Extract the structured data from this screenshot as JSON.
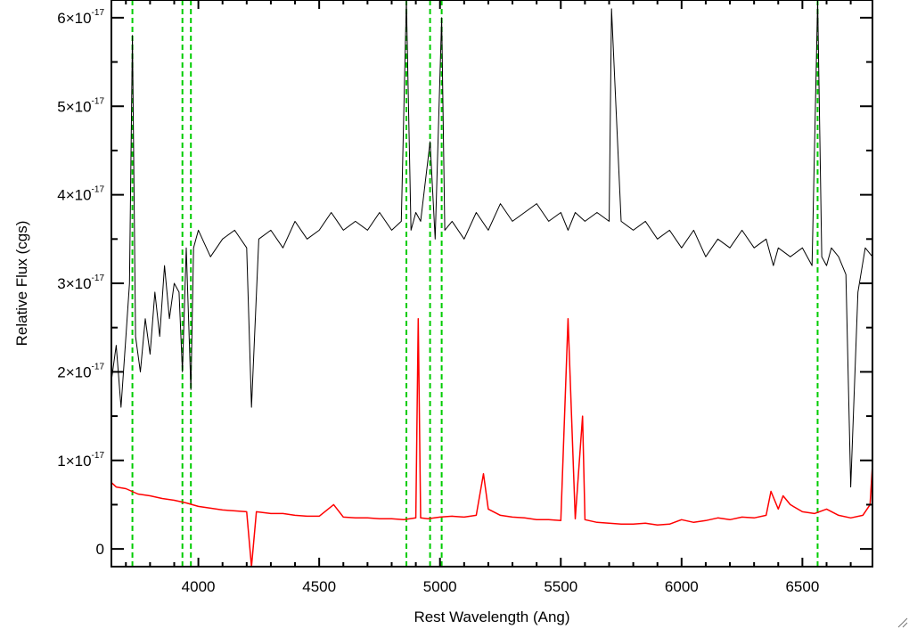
{
  "chart_data": {
    "type": "line",
    "xlabel": "Rest Wavelength (Ang)",
    "ylabel": "Relative Flux (cgs)",
    "xlim": [
      3640,
      6790
    ],
    "ylim": [
      -2e-18,
      6.2e-17
    ],
    "x_ticks": [
      {
        "value": 4000,
        "label": "4000"
      },
      {
        "value": 4500,
        "label": "4500"
      },
      {
        "value": 5000,
        "label": "5000"
      },
      {
        "value": 5500,
        "label": "5500"
      },
      {
        "value": 6000,
        "label": "6000"
      },
      {
        "value": 6500,
        "label": "6500"
      }
    ],
    "y_ticks": [
      {
        "value": 0,
        "label": "0",
        "exp": ""
      },
      {
        "value": 1e-17,
        "label": "1×10",
        "exp": "-17"
      },
      {
        "value": 2e-17,
        "label": "2×10",
        "exp": "-17"
      },
      {
        "value": 3e-17,
        "label": "3×10",
        "exp": "-17"
      },
      {
        "value": 4e-17,
        "label": "4×10",
        "exp": "-17"
      },
      {
        "value": 5e-17,
        "label": "5×10",
        "exp": "-17"
      },
      {
        "value": 6e-17,
        "label": "6×10",
        "exp": "-17"
      }
    ],
    "grid": false,
    "vlines": [
      3727,
      3934,
      3969,
      4861,
      4959,
      5007,
      6563
    ],
    "vline_color": "#00cc00",
    "series": [
      {
        "color": "#000000",
        "x": [
          3640,
          3660,
          3680,
          3700,
          3715,
          3727,
          3740,
          3760,
          3780,
          3800,
          3820,
          3840,
          3860,
          3880,
          3900,
          3920,
          3934,
          3950,
          3969,
          3980,
          4000,
          4050,
          4100,
          4150,
          4200,
          4220,
          4250,
          4300,
          4350,
          4400,
          4450,
          4500,
          4550,
          4600,
          4650,
          4700,
          4750,
          4800,
          4840,
          4861,
          4880,
          4900,
          4920,
          4959,
          4980,
          5007,
          5020,
          5050,
          5100,
          5150,
          5200,
          5250,
          5300,
          5350,
          5400,
          5450,
          5500,
          5530,
          5560,
          5600,
          5650,
          5700,
          5710,
          5750,
          5800,
          5850,
          5900,
          5950,
          6000,
          6050,
          6100,
          6150,
          6200,
          6250,
          6300,
          6350,
          6380,
          6400,
          6450,
          6500,
          6540,
          6563,
          6580,
          6600,
          6620,
          6650,
          6680,
          6700,
          6730,
          6760,
          6790
        ],
        "y": [
          1.9e-17,
          2.3e-17,
          1.6e-17,
          2.4e-17,
          3e-17,
          5.8e-17,
          2.4e-17,
          2e-17,
          2.6e-17,
          2.2e-17,
          2.9e-17,
          2.4e-17,
          3.2e-17,
          2.6e-17,
          3e-17,
          2.9e-17,
          2e-17,
          3.4e-17,
          1.8e-17,
          3.4e-17,
          3.6e-17,
          3.3e-17,
          3.5e-17,
          3.6e-17,
          3.4e-17,
          1.6e-17,
          3.5e-17,
          3.6e-17,
          3.4e-17,
          3.7e-17,
          3.5e-17,
          3.6e-17,
          3.8e-17,
          3.6e-17,
          3.7e-17,
          3.6e-17,
          3.8e-17,
          3.6e-17,
          3.7e-17,
          6.2e-17,
          3.6e-17,
          3.8e-17,
          3.7e-17,
          4.6e-17,
          3.5e-17,
          6e-17,
          3.6e-17,
          3.7e-17,
          3.5e-17,
          3.8e-17,
          3.6e-17,
          3.9e-17,
          3.7e-17,
          3.8e-17,
          3.9e-17,
          3.7e-17,
          3.8e-17,
          3.6e-17,
          3.8e-17,
          3.7e-17,
          3.8e-17,
          3.7e-17,
          6.1e-17,
          3.7e-17,
          3.6e-17,
          3.7e-17,
          3.5e-17,
          3.6e-17,
          3.4e-17,
          3.6e-17,
          3.3e-17,
          3.5e-17,
          3.4e-17,
          3.6e-17,
          3.4e-17,
          3.5e-17,
          3.2e-17,
          3.4e-17,
          3.3e-17,
          3.4e-17,
          3.2e-17,
          6.2e-17,
          3.3e-17,
          3.2e-17,
          3.4e-17,
          3.3e-17,
          3.1e-17,
          7e-18,
          2.9e-17,
          3.4e-17,
          3.3e-17
        ]
      },
      {
        "color": "#ff0000",
        "x": [
          3640,
          3660,
          3700,
          3750,
          3800,
          3850,
          3900,
          3950,
          4000,
          4050,
          4100,
          4150,
          4200,
          4220,
          4240,
          4300,
          4350,
          4400,
          4450,
          4500,
          4560,
          4600,
          4650,
          4700,
          4750,
          4800,
          4850,
          4900,
          4910,
          4920,
          4950,
          5000,
          5050,
          5100,
          5150,
          5180,
          5200,
          5250,
          5300,
          5350,
          5400,
          5450,
          5500,
          5530,
          5560,
          5590,
          5600,
          5650,
          5700,
          5750,
          5800,
          5850,
          5900,
          5950,
          6000,
          6050,
          6100,
          6150,
          6200,
          6250,
          6300,
          6350,
          6370,
          6400,
          6420,
          6450,
          6500,
          6550,
          6600,
          6650,
          6700,
          6750,
          6780,
          6790
        ],
        "y": [
          7.5e-18,
          7e-18,
          6.8e-18,
          6.2e-18,
          6e-18,
          5.7e-18,
          5.5e-18,
          5.2e-18,
          4.8e-18,
          4.6e-18,
          4.4e-18,
          4.3e-18,
          4.2e-18,
          -2e-18,
          4.2e-18,
          4e-18,
          4e-18,
          3.8e-18,
          3.7e-18,
          3.7e-18,
          5e-18,
          3.6e-18,
          3.5e-18,
          3.5e-18,
          3.4e-18,
          3.4e-18,
          3.3e-18,
          3.5e-18,
          2.6e-17,
          3.5e-18,
          3.4e-18,
          3.6e-18,
          3.7e-18,
          3.6e-18,
          3.8e-18,
          8.5e-18,
          4.5e-18,
          3.8e-18,
          3.6e-18,
          3.5e-18,
          3.3e-18,
          3.3e-18,
          3.2e-18,
          2.6e-17,
          3.4e-18,
          1.5e-17,
          3.3e-18,
          3e-18,
          2.9e-18,
          2.8e-18,
          2.8e-18,
          2.9e-18,
          2.7e-18,
          2.8e-18,
          3.3e-18,
          3e-18,
          3.2e-18,
          3.5e-18,
          3.3e-18,
          3.6e-18,
          3.5e-18,
          3.8e-18,
          6.5e-18,
          4.5e-18,
          6e-18,
          5e-18,
          4.2e-18,
          4e-18,
          4.5e-18,
          3.8e-18,
          3.5e-18,
          3.8e-18,
          5e-18,
          9.5e-18
        ]
      }
    ]
  }
}
